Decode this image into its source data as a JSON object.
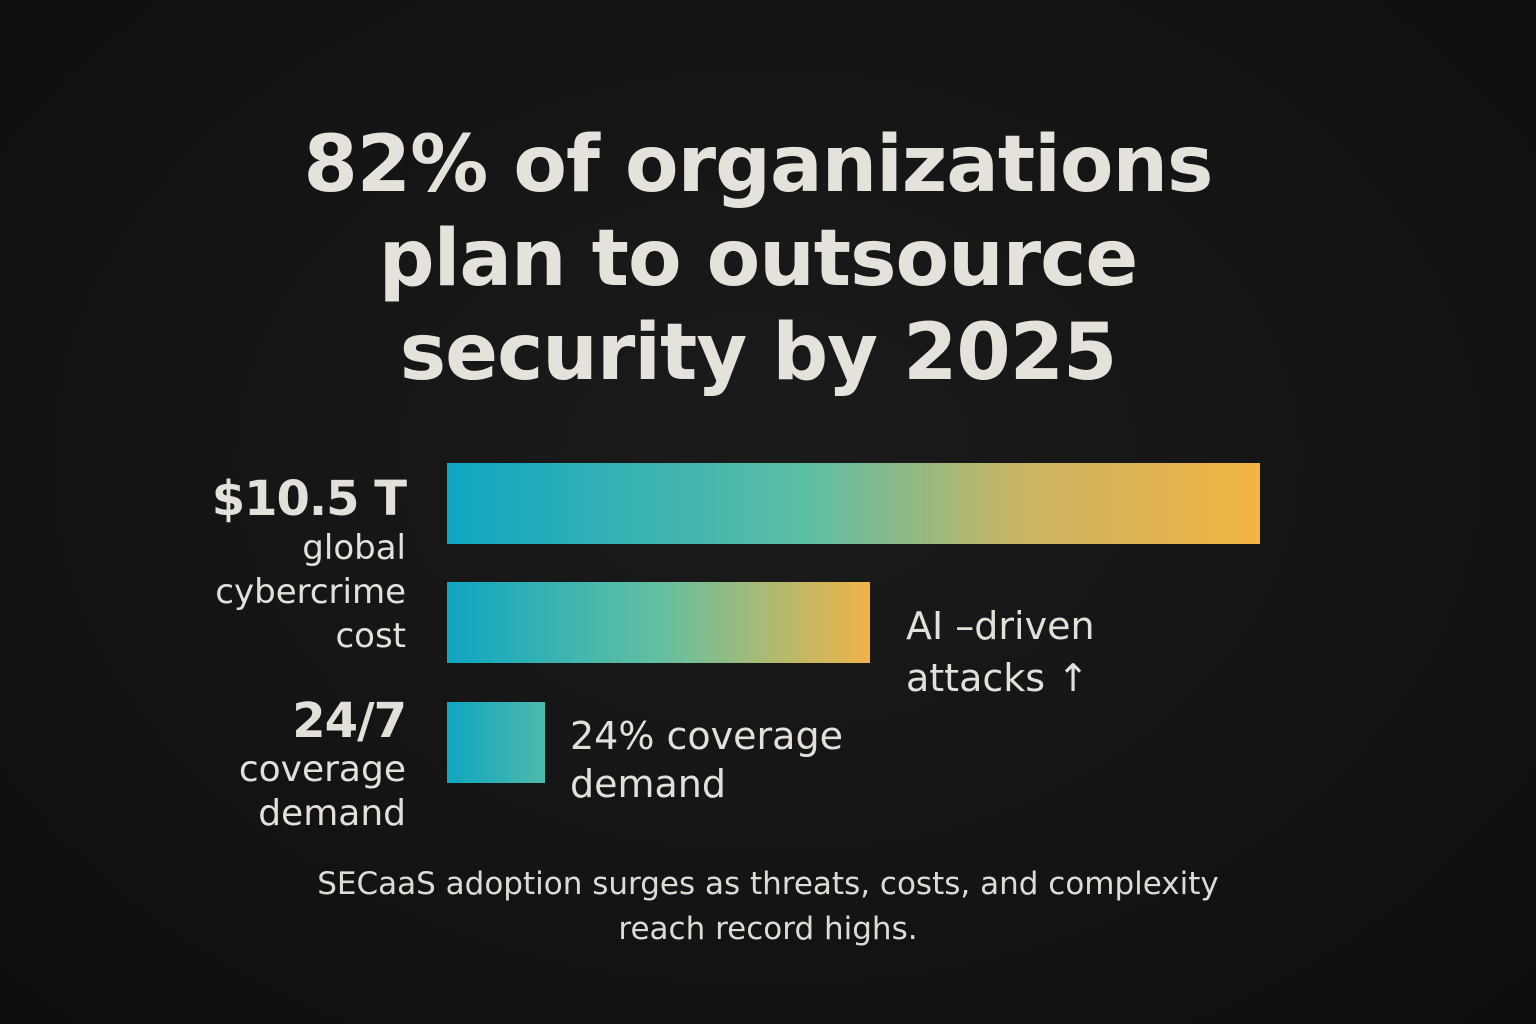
{
  "headline": {
    "line1": "82% of organizations",
    "line2": "plan to outsource",
    "line3": "security by 2025"
  },
  "stats": {
    "cybercrime": {
      "value": "$10.5 T",
      "line1": "global",
      "line2": "cybercrime",
      "line3": "cost"
    },
    "coverage": {
      "value": "24/7",
      "line1": "coverage",
      "line2": "demand"
    }
  },
  "notes": {
    "ai_line1": "AI –driven",
    "ai_line2": "attacks ↑",
    "coverage_line1": "24% coverage",
    "coverage_line2": "demand"
  },
  "footer": {
    "line1": "SECaaS adoption surges as threats, costs, and complexity",
    "line2": "reach record highs."
  },
  "colors": {
    "background": "#141414",
    "text": "#e5e2dc",
    "bar_start": "#0fa6c2",
    "bar_mid": "#63bfa2",
    "bar_end": "#f2b544"
  },
  "chart_data": {
    "type": "bar",
    "orientation": "horizontal",
    "categories": [
      "$10.5 T global cybercrime cost",
      "AI –driven attacks ↑",
      "24% coverage demand"
    ],
    "values": [
      100,
      52,
      12
    ],
    "value_unit": "relative bar length (% of longest bar)",
    "xlim": [
      0,
      100
    ],
    "title": "82% of organizations plan to outsource security by 2025",
    "grid": false,
    "legend": "none"
  }
}
